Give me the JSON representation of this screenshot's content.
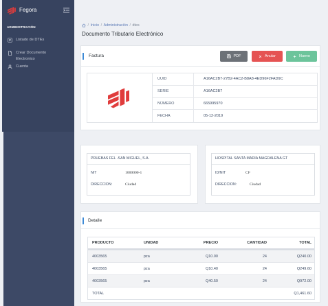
{
  "sidebar": {
    "brand": "Fegora",
    "brand_icon": "fegora-logo",
    "toggle_icon": "hamburger-icon",
    "section_label": "ADMINISTRACIÓN",
    "items": [
      {
        "label": "Listado de DTEs",
        "icon": "list-icon"
      },
      {
        "label": "Crear Documento Electronico",
        "icon": "document-icon"
      },
      {
        "label": "Cuenta",
        "icon": "user-icon"
      }
    ]
  },
  "breadcrumb": {
    "home_icon": "home-icon",
    "separator": "/",
    "items": [
      "Inicio",
      "Administración",
      "dtes"
    ]
  },
  "page_title": "Documento Tributario Electrónico",
  "invoice_card": {
    "title": "Factura",
    "logo_icon": "fegora-logo",
    "buttons": [
      {
        "label": "PDF",
        "icon": "save-icon"
      },
      {
        "label": "Anular",
        "icon": "close-icon"
      },
      {
        "label": "Nuevo",
        "icon": "plus-icon"
      }
    ],
    "fields": [
      {
        "label": "UUID",
        "value": "A16AC2B7-27B2-4AC2-B8A8-4ED96F2FAD9C"
      },
      {
        "label": "SERIE",
        "value": "A16AC2B7"
      },
      {
        "label": "NÚMERO",
        "value": "665995970"
      },
      {
        "label": "FECHA",
        "value": "05-12-2019"
      }
    ]
  },
  "issuer": {
    "name": "PRUEBAS FEL -SAN MIGUEL, S.A.",
    "id_label": "NIT",
    "id_value": "1000000-1",
    "address_label": "DIRECCION:",
    "address_value": "Ciudad"
  },
  "receiver": {
    "name": "HOSPITAL SANTA MARIA MAGDALENA GT",
    "id_label": "ID/NIT",
    "id_value": "CF",
    "address_label": "DIRECCION:",
    "address_value": "Ciudad"
  },
  "detail": {
    "title": "Detalle",
    "columns": [
      "PRODUCTO",
      "UNIDAD",
      "PRECIO",
      "CANTIDAD",
      "TOTAL"
    ],
    "rows": [
      {
        "producto": "4003565",
        "unidad": "pza",
        "precio": "Q10.00",
        "cantidad": "24",
        "total": "Q240.00"
      },
      {
        "producto": "4003565",
        "unidad": "pza",
        "precio": "Q10.40",
        "cantidad": "24",
        "total": "Q249.60"
      },
      {
        "producto": "4003565",
        "unidad": "pza",
        "precio": "Q40.50",
        "cantidad": "24",
        "total": "Q972.00"
      }
    ],
    "total_label": "TOTAL",
    "total_value": "Q1,461.60"
  },
  "colors": {
    "sidebar": "#3d4966",
    "sidebar_top": "#37435f",
    "accent": "#3d8ad6",
    "pdf_button": "#6c7177",
    "cancel_button": "#e55353",
    "new_button": "#6cc49b",
    "logo": "#e03c3c"
  }
}
